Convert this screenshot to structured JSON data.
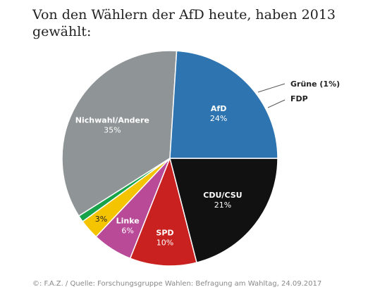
{
  "chart_data": {
    "type": "pie",
    "title": "Von den Wählern der AfD heute, haben 2013 gewählt:",
    "slices": [
      {
        "label": "Nichwahl/Andere",
        "value": 35,
        "value_label": "35%",
        "color": "#8f9596",
        "text_color": "#ffffff"
      },
      {
        "label": "Grüne (1%)",
        "value": 1,
        "value_label": "",
        "color": "#16a34a",
        "text_color": "#222222"
      },
      {
        "label": "FDP",
        "value": 3,
        "value_label": "3%",
        "color": "#f5c400",
        "text_color": "#222222"
      },
      {
        "label": "Linke",
        "value": 6,
        "value_label": "6%",
        "color": "#b84a98",
        "text_color": "#ffffff"
      },
      {
        "label": "SPD",
        "value": 10,
        "value_label": "10%",
        "color": "#c8211f",
        "text_color": "#ffffff"
      },
      {
        "label": "CDU/CSU",
        "value": 21,
        "value_label": "21%",
        "color": "#111111",
        "text_color": "#ffffff"
      },
      {
        "label": "AfD",
        "value": 24,
        "value_label": "24%",
        "color": "#2d74b0",
        "text_color": "#ffffff"
      }
    ]
  },
  "footer": "©: F.A.Z. / Quelle: Forschungsgruppe Wahlen: Befragung am Wahltag, 24.09.2017"
}
